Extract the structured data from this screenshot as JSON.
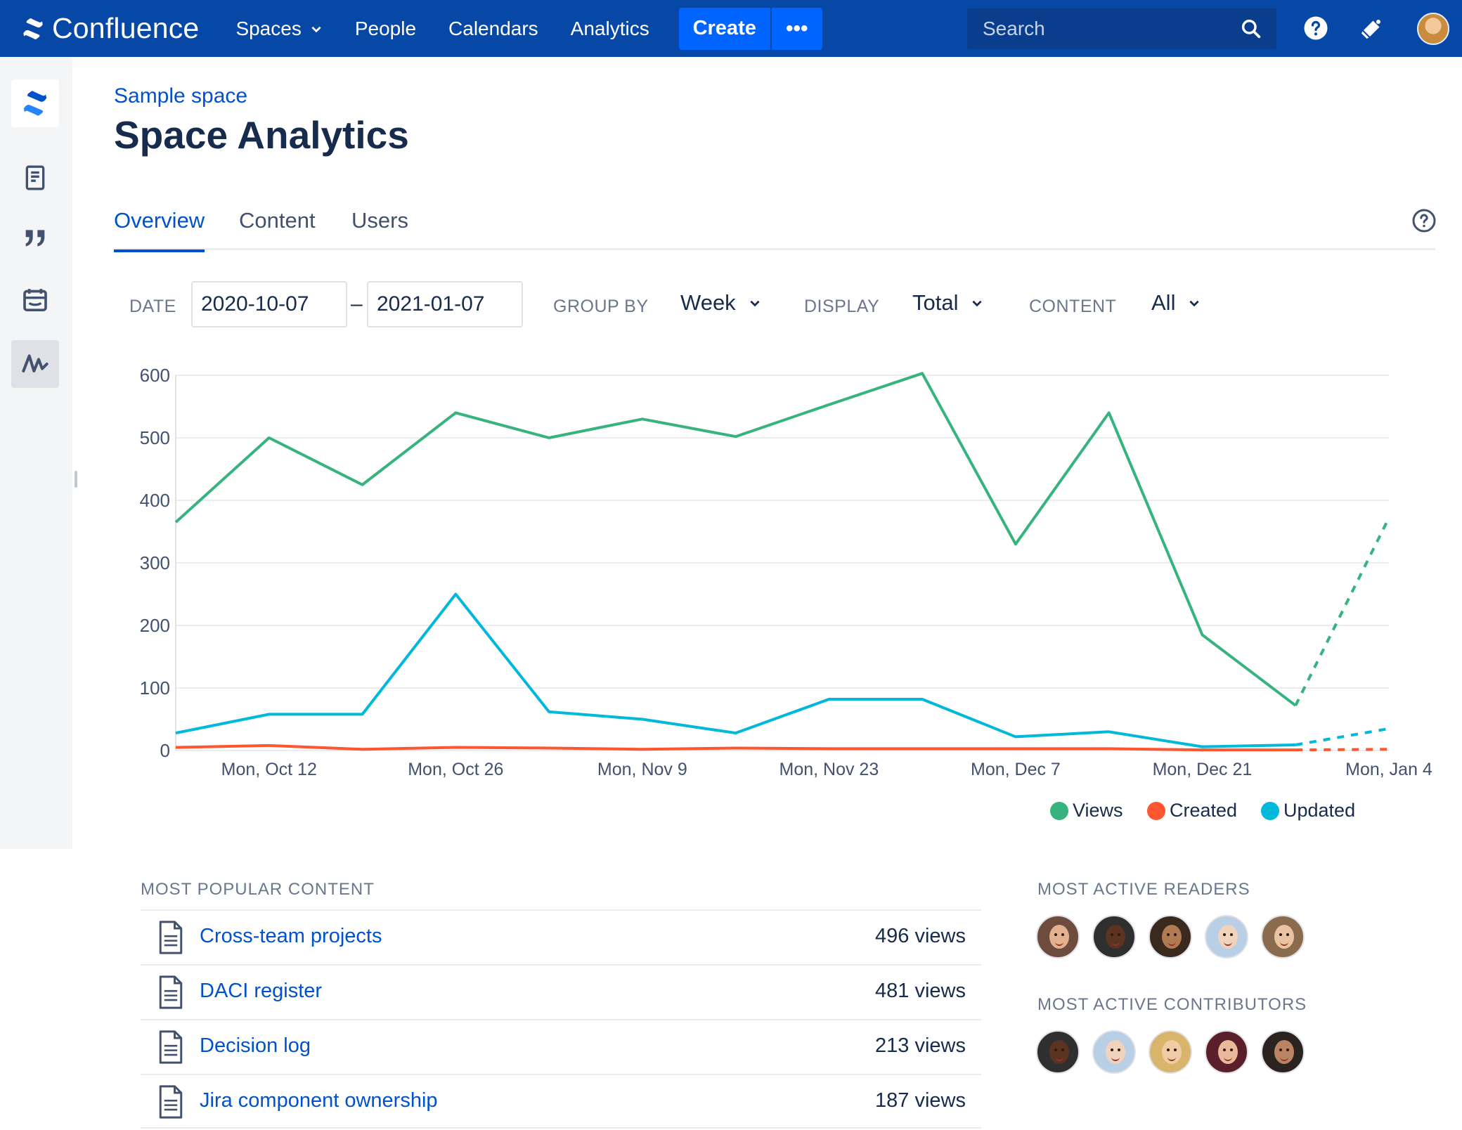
{
  "topnav": {
    "brand": "Confluence",
    "items": [
      "Spaces",
      "People",
      "Calendars",
      "Analytics"
    ],
    "create_label": "Create",
    "more_label": "•••",
    "search_placeholder": "Search"
  },
  "header": {
    "breadcrumb": "Sample space",
    "title": "Space Analytics"
  },
  "tabs": [
    "Overview",
    "Content",
    "Users"
  ],
  "filters": {
    "date_label": "DATE",
    "date_from": "2020-10-07",
    "date_separator": "–",
    "date_to": "2021-01-07",
    "group_by_label": "GROUP BY",
    "group_by_value": "Week",
    "display_label": "DISPLAY",
    "display_value": "Total",
    "content_label": "CONTENT",
    "content_value": "All"
  },
  "colors": {
    "views": "#36b37e",
    "created": "#ff5630",
    "updated": "#00b8d9",
    "nav": "#0747a6",
    "link": "#0052cc"
  },
  "chart_data": {
    "type": "line",
    "ylim": [
      0,
      600
    ],
    "yticks": [
      "0",
      "100",
      "200",
      "300",
      "400",
      "500",
      "600"
    ],
    "xlabels": [
      "Mon, Oct 12",
      "Mon, Oct 26",
      "Mon, Nov 9",
      "Mon, Nov 23",
      "Mon, Dec 7",
      "Mon, Dec 21",
      "Mon, Jan 4"
    ],
    "x": [
      "2020-10-05",
      "2020-10-12",
      "2020-10-19",
      "2020-10-26",
      "2020-11-02",
      "2020-11-09",
      "2020-11-16",
      "2020-11-23",
      "2020-11-30",
      "2020-12-07",
      "2020-12-14",
      "2020-12-21",
      "2020-12-28",
      "2021-01-04"
    ],
    "partial_last_point": true,
    "series": [
      {
        "name": "Views",
        "color": "#36b37e",
        "values": [
          365,
          500,
          425,
          540,
          500,
          530,
          502,
          553,
          603,
          330,
          540,
          185,
          72,
          372
        ]
      },
      {
        "name": "Created",
        "color": "#ff5630",
        "values": [
          5,
          8,
          2,
          5,
          4,
          2,
          4,
          3,
          3,
          3,
          3,
          1,
          1,
          2
        ]
      },
      {
        "name": "Updated",
        "color": "#00b8d9",
        "values": [
          28,
          58,
          58,
          250,
          62,
          50,
          28,
          82,
          82,
          22,
          30,
          6,
          9,
          35
        ]
      }
    ]
  },
  "popular": {
    "heading": "MOST POPULAR CONTENT",
    "items": [
      {
        "title": "Cross-team projects",
        "views": "496 views"
      },
      {
        "title": "DACI register",
        "views": "481 views"
      },
      {
        "title": "Decision log",
        "views": "213 views"
      },
      {
        "title": "Jira component ownership",
        "views": "187 views"
      }
    ]
  },
  "readers": {
    "heading": "MOST ACTIVE READERS",
    "avatars": [
      {
        "skin": "#e4b190",
        "bg": "#6d4c3d"
      },
      {
        "skin": "#5a3420",
        "bg": "#2f2f2f"
      },
      {
        "skin": "#b07a52",
        "bg": "#3a2a1e"
      },
      {
        "skin": "#f1d3bd",
        "bg": "#b9cfe6"
      },
      {
        "skin": "#eac3a3",
        "bg": "#8a6b4e"
      }
    ]
  },
  "contributors": {
    "heading": "MOST ACTIVE CONTRIBUTORS",
    "avatars": [
      {
        "skin": "#5a3420",
        "bg": "#2f2f2f"
      },
      {
        "skin": "#f1d3bd",
        "bg": "#b9cfe6"
      },
      {
        "skin": "#f0cba4",
        "bg": "#d9b56b"
      },
      {
        "skin": "#e9b99a",
        "bg": "#5a1f2a"
      },
      {
        "skin": "#b98364",
        "bg": "#2a2320"
      }
    ]
  }
}
